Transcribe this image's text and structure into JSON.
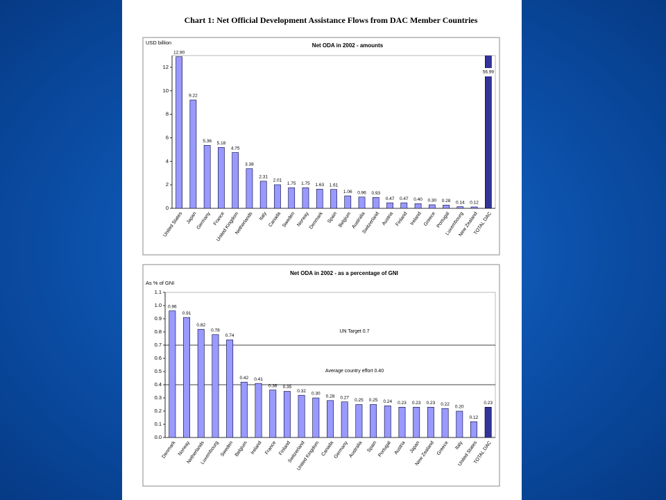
{
  "header": {
    "title": "Chart 1: Net Official Development Assistance Flows from DAC Member Countries"
  },
  "chart_data": [
    {
      "type": "bar",
      "title": "Net ODA in 2002 - amounts",
      "y_label": "USD billion",
      "categories": [
        "United States",
        "Japan",
        "Germany",
        "France",
        "United Kingdom",
        "Netherlands",
        "Italy",
        "Canada",
        "Sweden",
        "Norway",
        "Denmark",
        "Spain",
        "Belgium",
        "Australia",
        "Switzerland",
        "Austria",
        "Finland",
        "Ireland",
        "Greece",
        "Portugal",
        "Luxembourg",
        "New Zealand",
        "TOTAL DAC"
      ],
      "values": [
        12.9,
        9.22,
        5.36,
        5.18,
        4.75,
        3.38,
        2.31,
        2.01,
        1.75,
        1.75,
        1.63,
        1.61,
        1.06,
        0.96,
        0.93,
        0.47,
        0.47,
        0.4,
        0.3,
        0.28,
        0.14,
        0.12,
        56.99
      ],
      "value_labels": [
        "12.90",
        "9.22",
        "5.36",
        "5.18",
        "4.75",
        "3.38",
        "2.31",
        "2.01",
        "1.75",
        "1.75",
        "1.63",
        "1.61",
        "1.06",
        "0.96",
        "0.93",
        "0.47",
        "0.47",
        "0.40",
        "0.30",
        "0.28",
        "0.14",
        "0.12",
        "56.99"
      ],
      "colors": [
        "#9999ff",
        "#9999ff",
        "#9999ff",
        "#9999ff",
        "#9999ff",
        "#9999ff",
        "#9999ff",
        "#9999ff",
        "#9999ff",
        "#9999ff",
        "#9999ff",
        "#9999ff",
        "#9999ff",
        "#9999ff",
        "#9999ff",
        "#9999ff",
        "#9999ff",
        "#9999ff",
        "#9999ff",
        "#9999ff",
        "#9999ff",
        "#9999ff",
        "#333399"
      ],
      "ylim": [
        0,
        13
      ],
      "yticks": [
        0,
        2,
        4,
        6,
        8,
        10,
        12
      ]
    },
    {
      "type": "bar",
      "title": "Net ODA in 2002 - as a percentage of GNI",
      "y_label": "As % of GNI",
      "categories": [
        "Denmark",
        "Norway",
        "Netherlands",
        "Luxembourg",
        "Sweden",
        "Belgium",
        "Ireland",
        "France",
        "Finland",
        "Switzerland",
        "United Kingdom",
        "Canada",
        "Germany",
        "Australia",
        "Spain",
        "Portugal",
        "Austria",
        "Japan",
        "New Zealand",
        "Greece",
        "Italy",
        "United States",
        "TOTAL DAC"
      ],
      "values": [
        0.96,
        0.91,
        0.82,
        0.78,
        0.74,
        0.42,
        0.41,
        0.36,
        0.35,
        0.32,
        0.3,
        0.28,
        0.27,
        0.25,
        0.25,
        0.24,
        0.23,
        0.23,
        0.23,
        0.22,
        0.2,
        0.12,
        0.23
      ],
      "value_labels": [
        "0.96",
        "0.91",
        "0.82",
        "0.78",
        "0.74",
        "0.42",
        "0.41",
        "0.36",
        "0.35",
        "0.32",
        "0.30",
        "0.28",
        "0.27",
        "0.25",
        "0.25",
        "0.24",
        "0.23",
        "0.23",
        "0.23",
        "0.22",
        "0.20",
        "0.12",
        "0.23"
      ],
      "colors": [
        "#9999ff",
        "#9999ff",
        "#9999ff",
        "#9999ff",
        "#9999ff",
        "#9999ff",
        "#9999ff",
        "#9999ff",
        "#9999ff",
        "#9999ff",
        "#9999ff",
        "#9999ff",
        "#9999ff",
        "#9999ff",
        "#9999ff",
        "#9999ff",
        "#9999ff",
        "#9999ff",
        "#9999ff",
        "#9999ff",
        "#9999ff",
        "#9999ff",
        "#333399"
      ],
      "ylim": [
        0,
        1.1
      ],
      "yticks": [
        {
          "value": 0,
          "label": "0.0"
        },
        0.1,
        0.2,
        0.3,
        0.4,
        0.5,
        0.6,
        0.7,
        0.8,
        0.9,
        {
          "value": 1,
          "label": "1.0"
        },
        1.1
      ],
      "reference_lines": [
        {
          "value": 0.7,
          "label": "UN Target 0.7"
        },
        {
          "value": 0.4,
          "label": "Average country effort 0.40"
        }
      ]
    }
  ]
}
